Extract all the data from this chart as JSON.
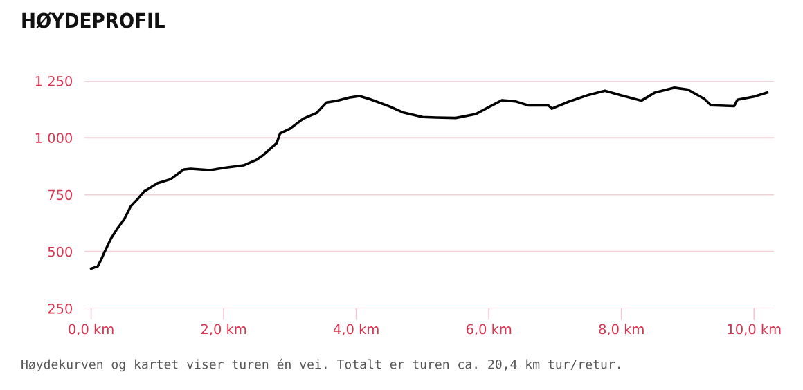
{
  "chart_data": {
    "type": "line",
    "title": "HØYDEPROFIL",
    "annotations": [
      "Høydekurven og kartet viser turen én vei. Totalt er turen ca. 20,4 km tur/retur."
    ],
    "x": [
      0,
      0.1,
      0.15,
      0.2,
      0.3,
      0.4,
      0.5,
      0.6,
      0.7,
      0.8,
      1.0,
      1.2,
      1.4,
      1.5,
      1.8,
      2.0,
      2.3,
      2.5,
      2.6,
      2.8,
      2.85,
      3.0,
      3.2,
      3.4,
      3.55,
      3.7,
      3.9,
      4.05,
      4.2,
      4.5,
      4.7,
      5.0,
      5.2,
      5.5,
      5.8,
      6.0,
      6.2,
      6.4,
      6.6,
      6.9,
      6.95,
      7.2,
      7.5,
      7.75,
      8.0,
      8.3,
      8.5,
      8.8,
      9.0,
      9.25,
      9.35,
      9.7,
      9.75,
      10.0,
      10.2
    ],
    "series": [
      {
        "color": "#000000",
        "values": [
          425,
          435,
          463,
          496,
          557,
          603,
          642,
          700,
          730,
          764,
          800,
          818,
          861,
          864,
          858,
          868,
          879,
          904,
          925,
          977,
          1019,
          1040,
          1084,
          1109,
          1155,
          1162,
          1177,
          1183,
          1170,
          1138,
          1112,
          1091,
          1089,
          1087,
          1104,
          1135,
          1165,
          1160,
          1142,
          1142,
          1128,
          1158,
          1188,
          1207,
          1186,
          1163,
          1198,
          1220,
          1212,
          1171,
          1143,
          1139,
          1167,
          1181,
          1199
        ]
      }
    ],
    "xlim": [
      -0.1,
      10.3
    ],
    "xticks": [
      {
        "value": 0,
        "label": "0,0 km"
      },
      {
        "value": 2,
        "label": "2,0 km"
      },
      {
        "value": 4,
        "label": "4,0 km"
      },
      {
        "value": 6,
        "label": "6,0 km"
      },
      {
        "value": 8,
        "label": "8,0 km"
      },
      {
        "value": 10,
        "label": "10,0 km"
      }
    ],
    "ylim": [
      250,
      1250
    ],
    "yticks": [
      250,
      500,
      750,
      {
        "value": 1000,
        "label": "1 000"
      },
      {
        "value": 1250,
        "label": "1 250"
      }
    ],
    "grid": "y",
    "legend": false,
    "marker": "none",
    "line_style": "solid"
  }
}
